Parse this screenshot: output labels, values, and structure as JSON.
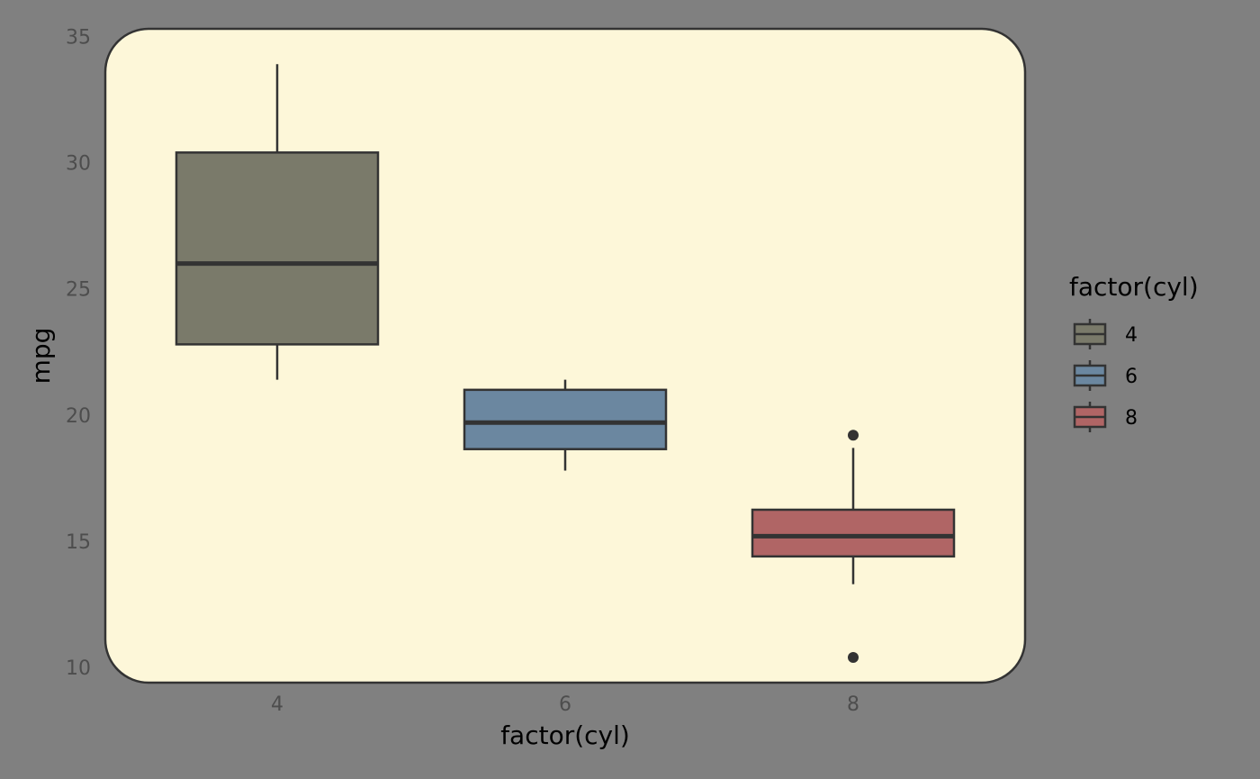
{
  "chart_data": {
    "type": "boxplot",
    "xlabel": "factor(cyl)",
    "ylabel": "mpg",
    "categories": [
      "4",
      "6",
      "8"
    ],
    "ylim": [
      9.4,
      35.3
    ],
    "yticks": [
      10,
      15,
      20,
      25,
      30,
      35
    ],
    "grid": false,
    "legend": {
      "title": "factor(cyl)",
      "position": "right",
      "entries": [
        {
          "label": "4",
          "color": "#7a7a6a"
        },
        {
          "label": "6",
          "color": "#6b87a0"
        },
        {
          "label": "8",
          "color": "#b06565"
        }
      ]
    },
    "boxes": [
      {
        "category": "4",
        "whisker_low": 21.4,
        "q1": 22.8,
        "median": 26.0,
        "q3": 30.4,
        "whisker_high": 33.9,
        "outliers": [],
        "color": "#7a7a6a"
      },
      {
        "category": "6",
        "whisker_low": 17.8,
        "q1": 18.65,
        "median": 19.7,
        "q3": 21.0,
        "whisker_high": 21.4,
        "outliers": [],
        "color": "#6b87a0"
      },
      {
        "category": "8",
        "whisker_low": 13.3,
        "q1": 14.4,
        "median": 15.2,
        "q3": 16.25,
        "whisker_high": 18.7,
        "outliers": [
          19.2,
          10.4
        ],
        "color": "#b06565"
      }
    ],
    "panel_background": "#fdf7d9",
    "outline_color": "#333333"
  }
}
